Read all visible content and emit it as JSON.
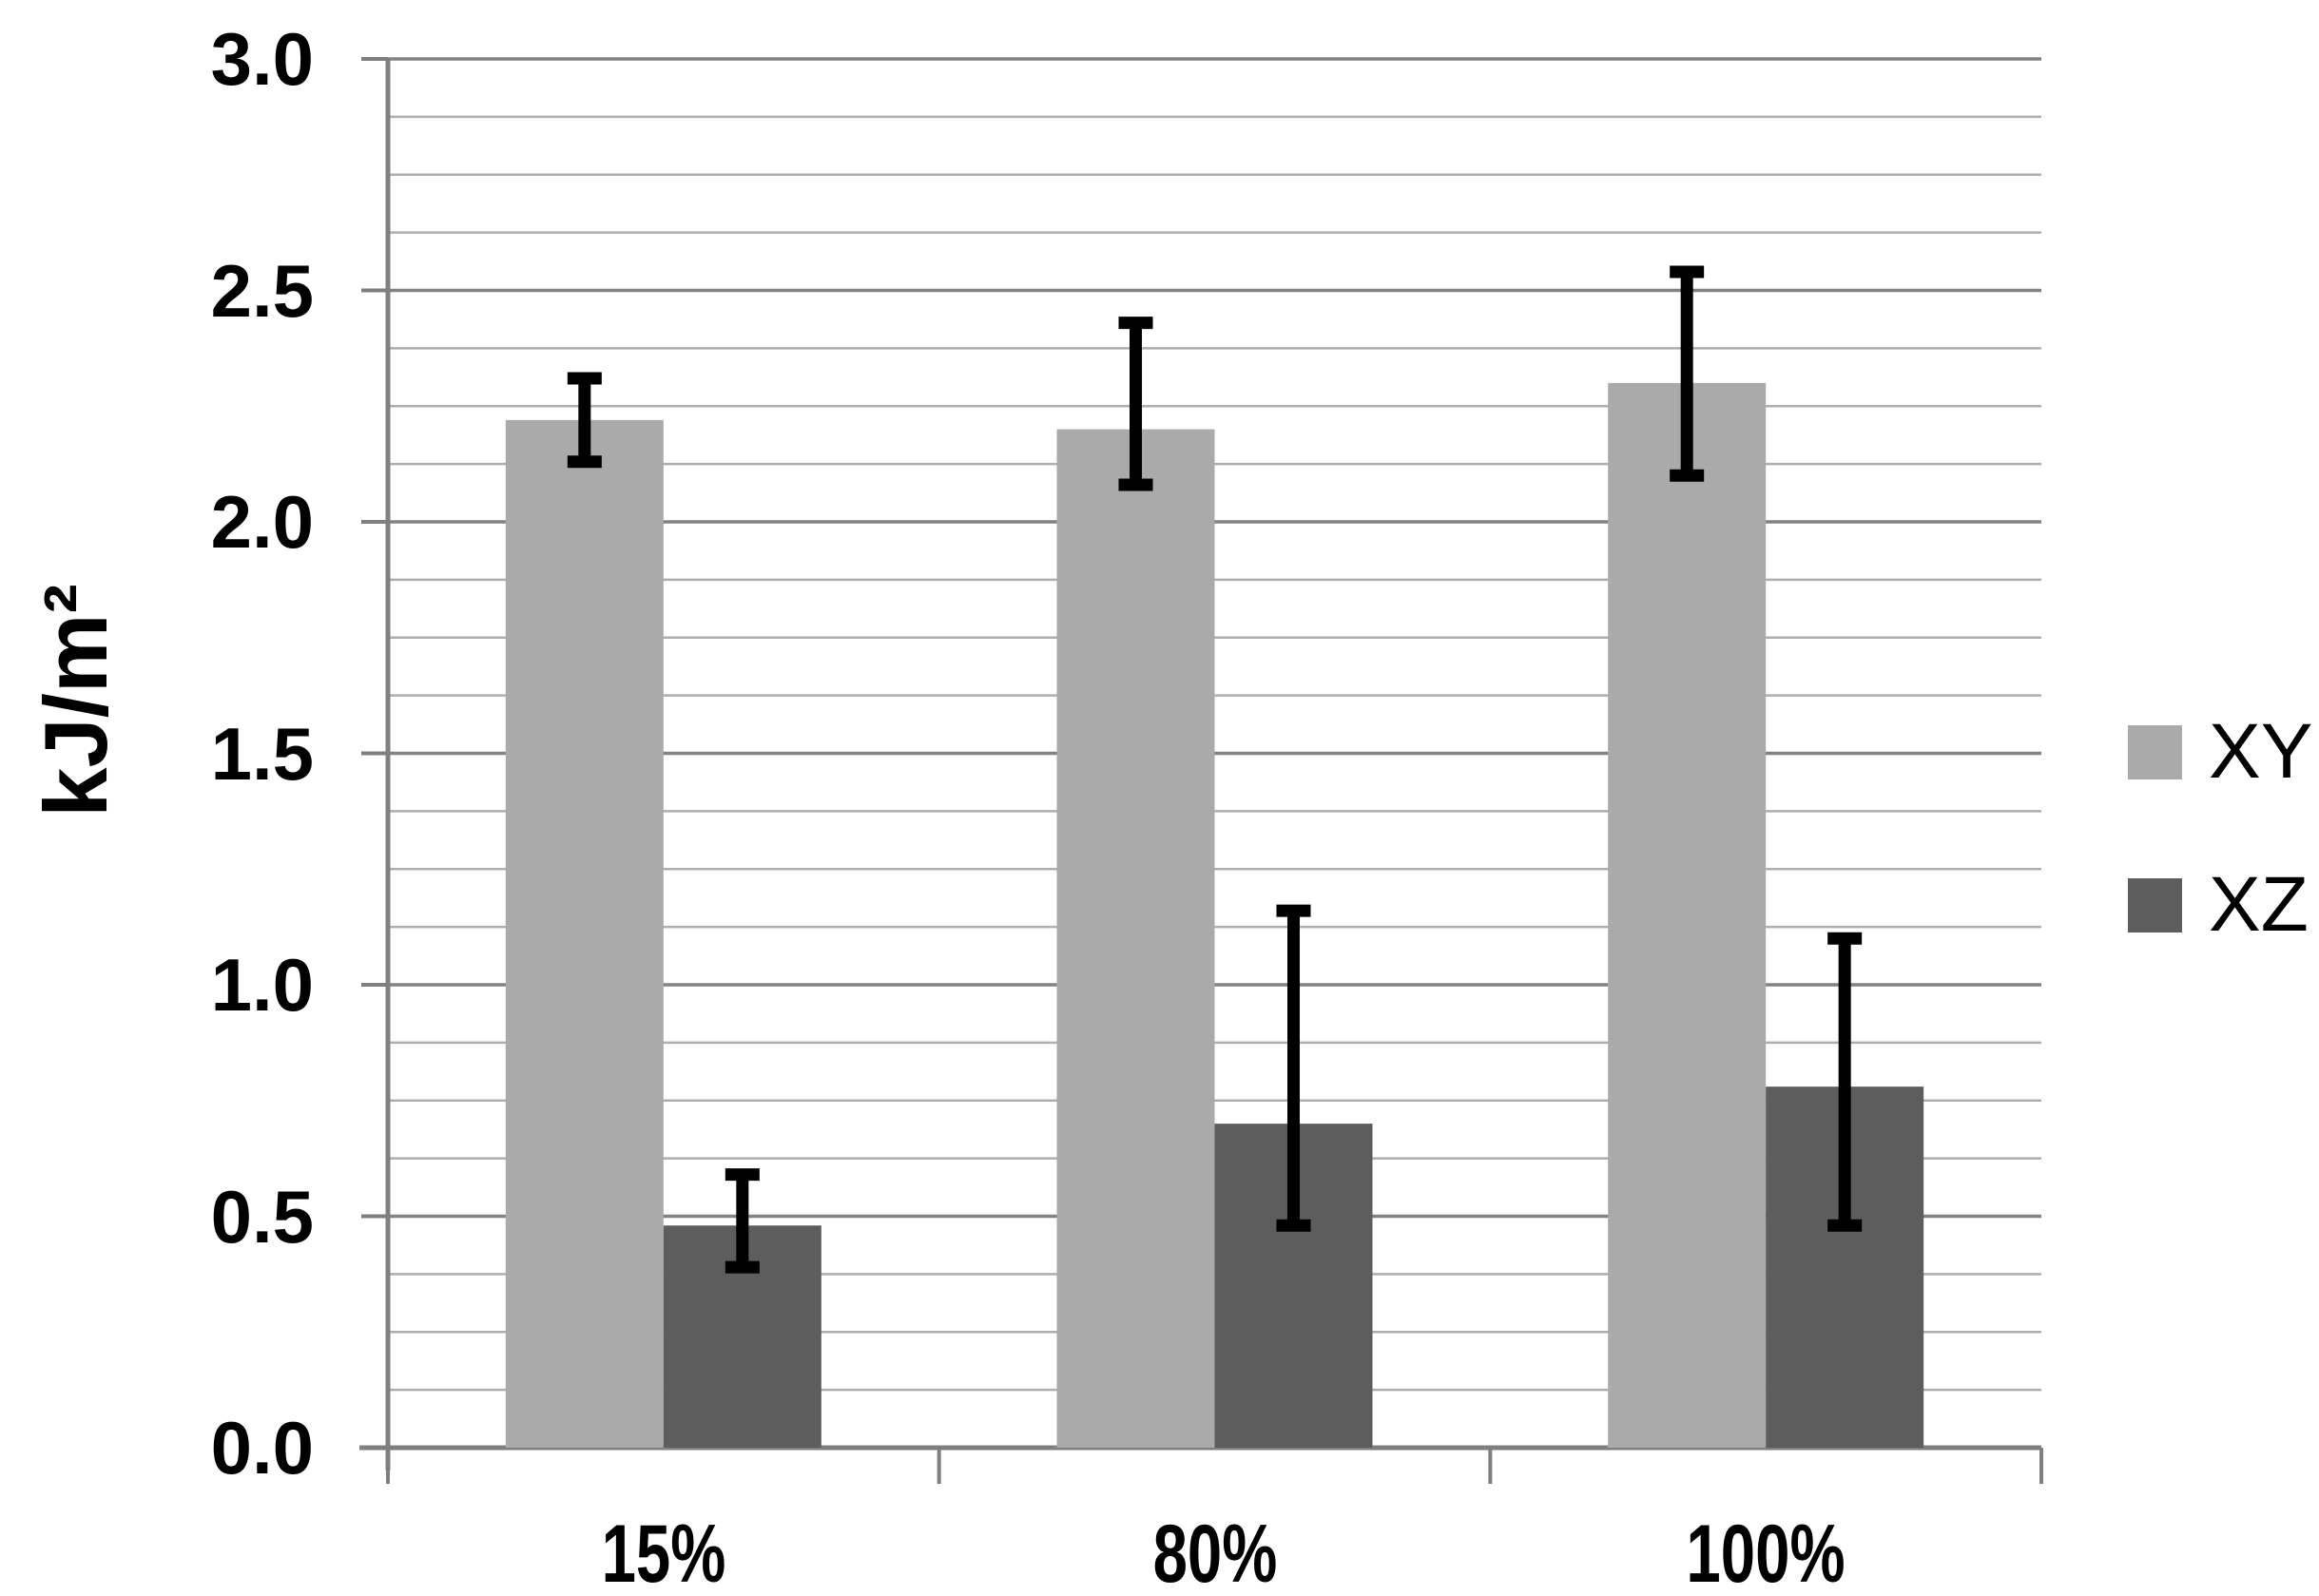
{
  "chart_data": {
    "type": "bar",
    "title": "",
    "xlabel": "",
    "ylabel": "kJ/m²",
    "categories": [
      "15%",
      "80%",
      "100%"
    ],
    "series": [
      {
        "name": "XY",
        "color": "#aaaaaa",
        "values": [
          2.22,
          2.2,
          2.3
        ],
        "error_low": [
          2.13,
          2.08,
          2.1
        ],
        "error_high": [
          2.31,
          2.43,
          2.54
        ]
      },
      {
        "name": "XZ",
        "color": "#5d5d5d",
        "values": [
          0.48,
          0.7,
          0.78
        ],
        "error_low": [
          0.39,
          0.48,
          0.48
        ],
        "error_high": [
          0.59,
          1.16,
          1.1
        ]
      }
    ],
    "ylim": [
      0.0,
      3.0
    ],
    "y_major_step": 0.5,
    "y_minor_step": 0.125,
    "y_tick_labels": [
      "0.0",
      "0.5",
      "1.0",
      "1.5",
      "2.0",
      "2.5",
      "3.0"
    ],
    "grid": true,
    "legend_position": "right",
    "error_bar_color": "#000000"
  },
  "colors": {
    "background": "#ffffff",
    "axis": "#7f7f7f",
    "major_gridline": "#828282",
    "minor_gridline": "#aeaeae",
    "text": "#000000"
  }
}
